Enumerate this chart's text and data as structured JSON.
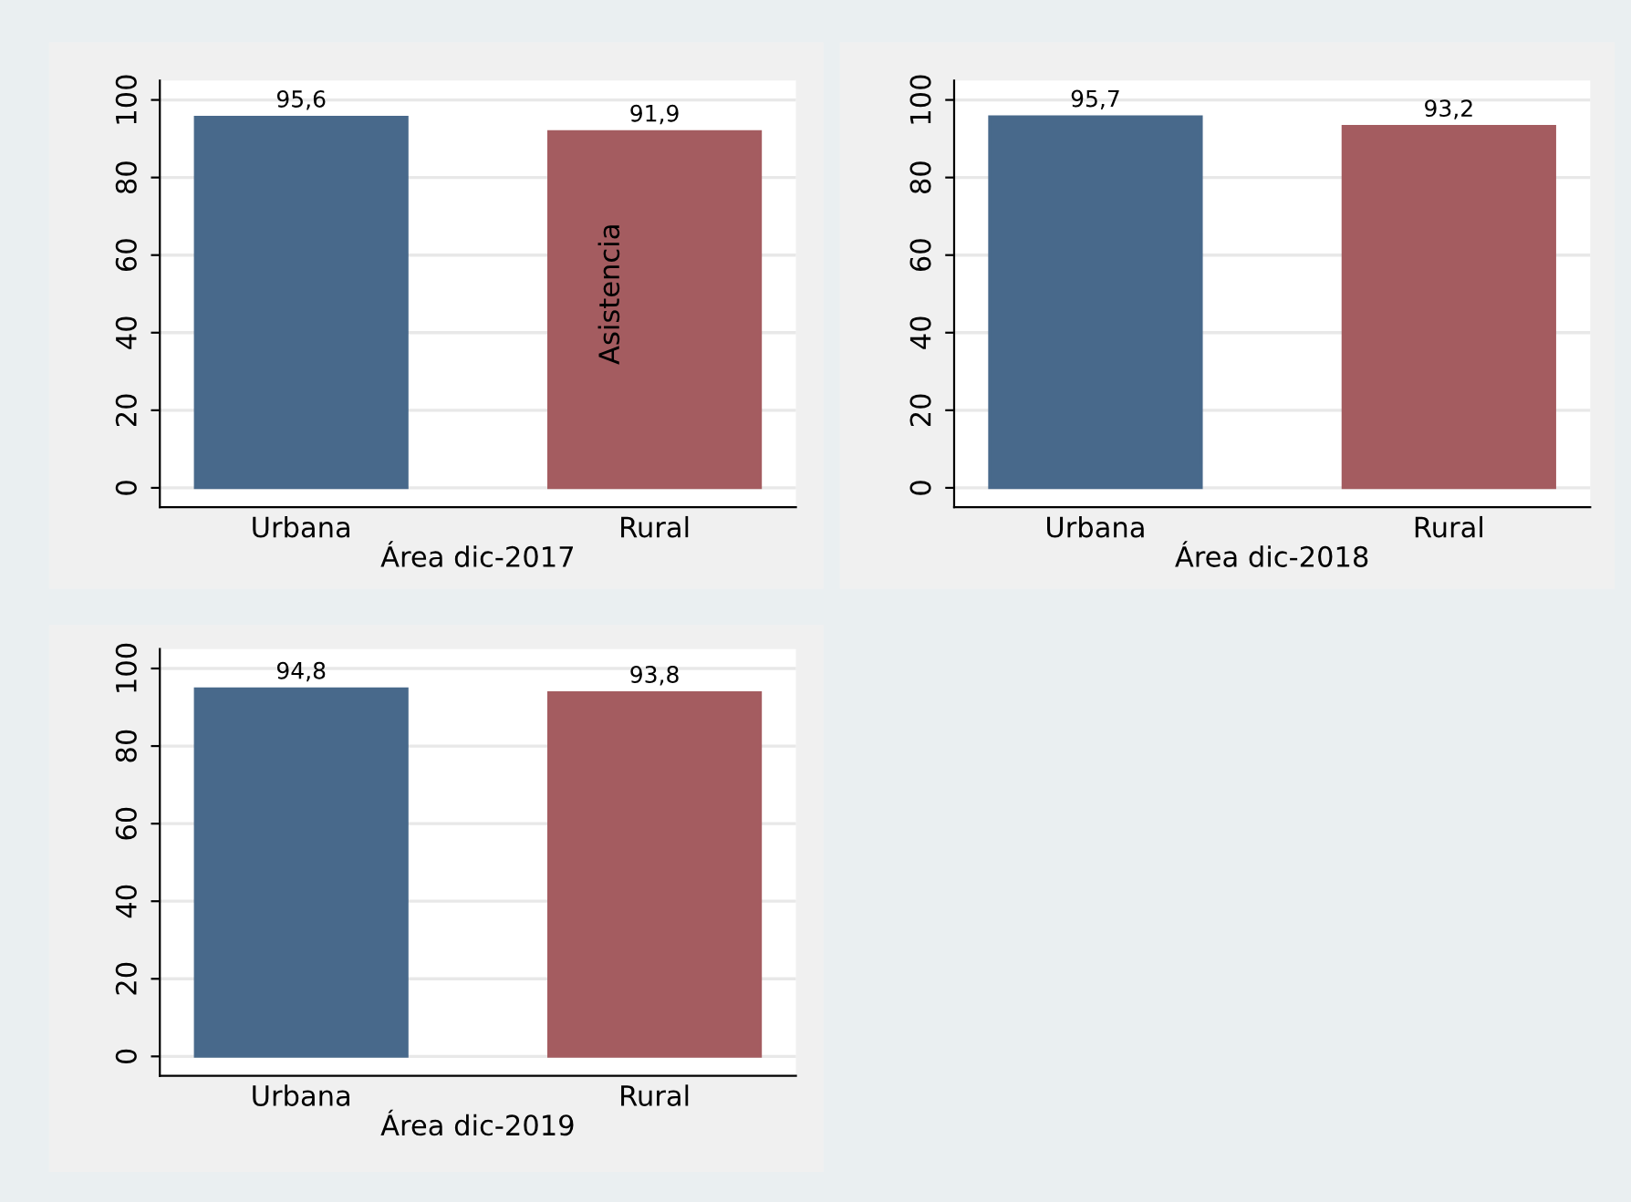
{
  "chart_data": [
    {
      "type": "bar",
      "categories": [
        "Urbana",
        "Rural"
      ],
      "values": [
        95.6,
        91.9
      ],
      "colors": [
        "#48698b",
        "#a45c60"
      ],
      "xlabel": "Área dic-2017",
      "ylim": [
        -5,
        105
      ],
      "yticks": [
        0,
        20,
        40,
        60,
        80,
        100
      ],
      "grid": "y",
      "value_labels": [
        "95,6",
        "91,9"
      ],
      "annotations": [
        "Asistencia"
      ]
    },
    {
      "type": "bar",
      "categories": [
        "Urbana",
        "Rural"
      ],
      "values": [
        95.7,
        93.2
      ],
      "colors": [
        "#48698b",
        "#a45c60"
      ],
      "xlabel": "Área dic-2018",
      "ylim": [
        -5,
        105
      ],
      "yticks": [
        0,
        20,
        40,
        60,
        80,
        100
      ],
      "grid": "y",
      "value_labels": [
        "95,7",
        "93,2"
      ]
    },
    {
      "type": "bar",
      "categories": [
        "Urbana",
        "Rural"
      ],
      "values": [
        94.8,
        93.8
      ],
      "colors": [
        "#48698b",
        "#a45c60"
      ],
      "xlabel": "Área dic-2019",
      "ylim": [
        -5,
        105
      ],
      "yticks": [
        0,
        20,
        40,
        60,
        80,
        100
      ],
      "grid": "y",
      "value_labels": [
        "94,8",
        "93,8"
      ]
    }
  ]
}
